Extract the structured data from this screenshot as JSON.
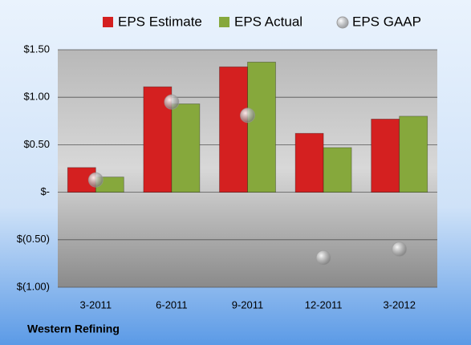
{
  "chart_data": {
    "type": "bar",
    "title": "Western Refining",
    "categories": [
      "3-2011",
      "6-2011",
      "9-2011",
      "12-2011",
      "3-2012"
    ],
    "series": [
      {
        "name": "EPS Estimate",
        "color": "#d42020",
        "values": [
          0.26,
          1.11,
          1.32,
          0.62,
          0.77
        ]
      },
      {
        "name": "EPS Actual",
        "color": "#86a83c",
        "values": [
          0.16,
          0.93,
          1.37,
          0.47,
          0.8
        ]
      },
      {
        "name": "EPS GAAP",
        "color": "#9a9a9a",
        "type": "scatter",
        "values": [
          0.13,
          0.95,
          0.81,
          -0.69,
          -0.6
        ]
      }
    ],
    "ylim": [
      -1.0,
      1.5
    ],
    "yticks": [
      {
        "value": -1.0,
        "label": "$(1.00)"
      },
      {
        "value": -0.5,
        "label": "$(0.50)"
      },
      {
        "value": 0,
        "label": "$-"
      },
      {
        "value": 0.5,
        "label": "$0.50"
      },
      {
        "value": 1.0,
        "label": "$1.00"
      },
      {
        "value": 1.5,
        "label": "$1.50"
      }
    ],
    "grid": true,
    "legend": "top"
  }
}
